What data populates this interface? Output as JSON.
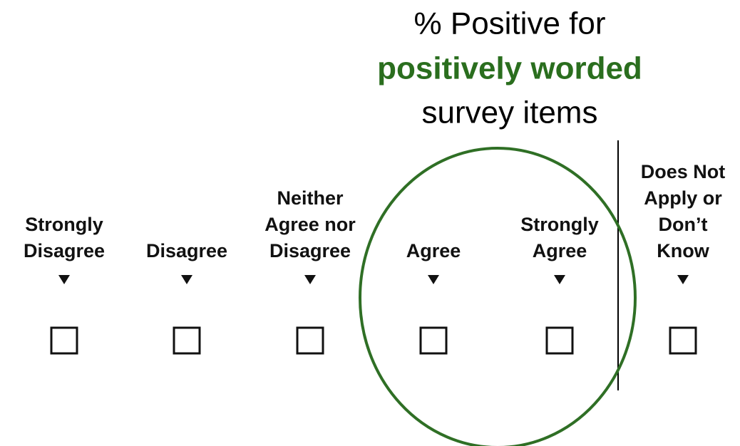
{
  "header": {
    "lines": [
      "% Positive for",
      "positively worded",
      "survey items"
    ]
  },
  "options": [
    {
      "lines": [
        "Strongly",
        "Disagree"
      ]
    },
    {
      "lines": [
        "Disagree"
      ]
    },
    {
      "lines": [
        "Neither",
        "Agree nor",
        "Disagree"
      ]
    },
    {
      "lines": [
        "Agree"
      ]
    },
    {
      "lines": [
        "Strongly",
        "Agree"
      ]
    },
    {
      "lines": [
        "Does Not",
        "Apply or",
        "Don’t",
        "Know"
      ]
    }
  ]
}
